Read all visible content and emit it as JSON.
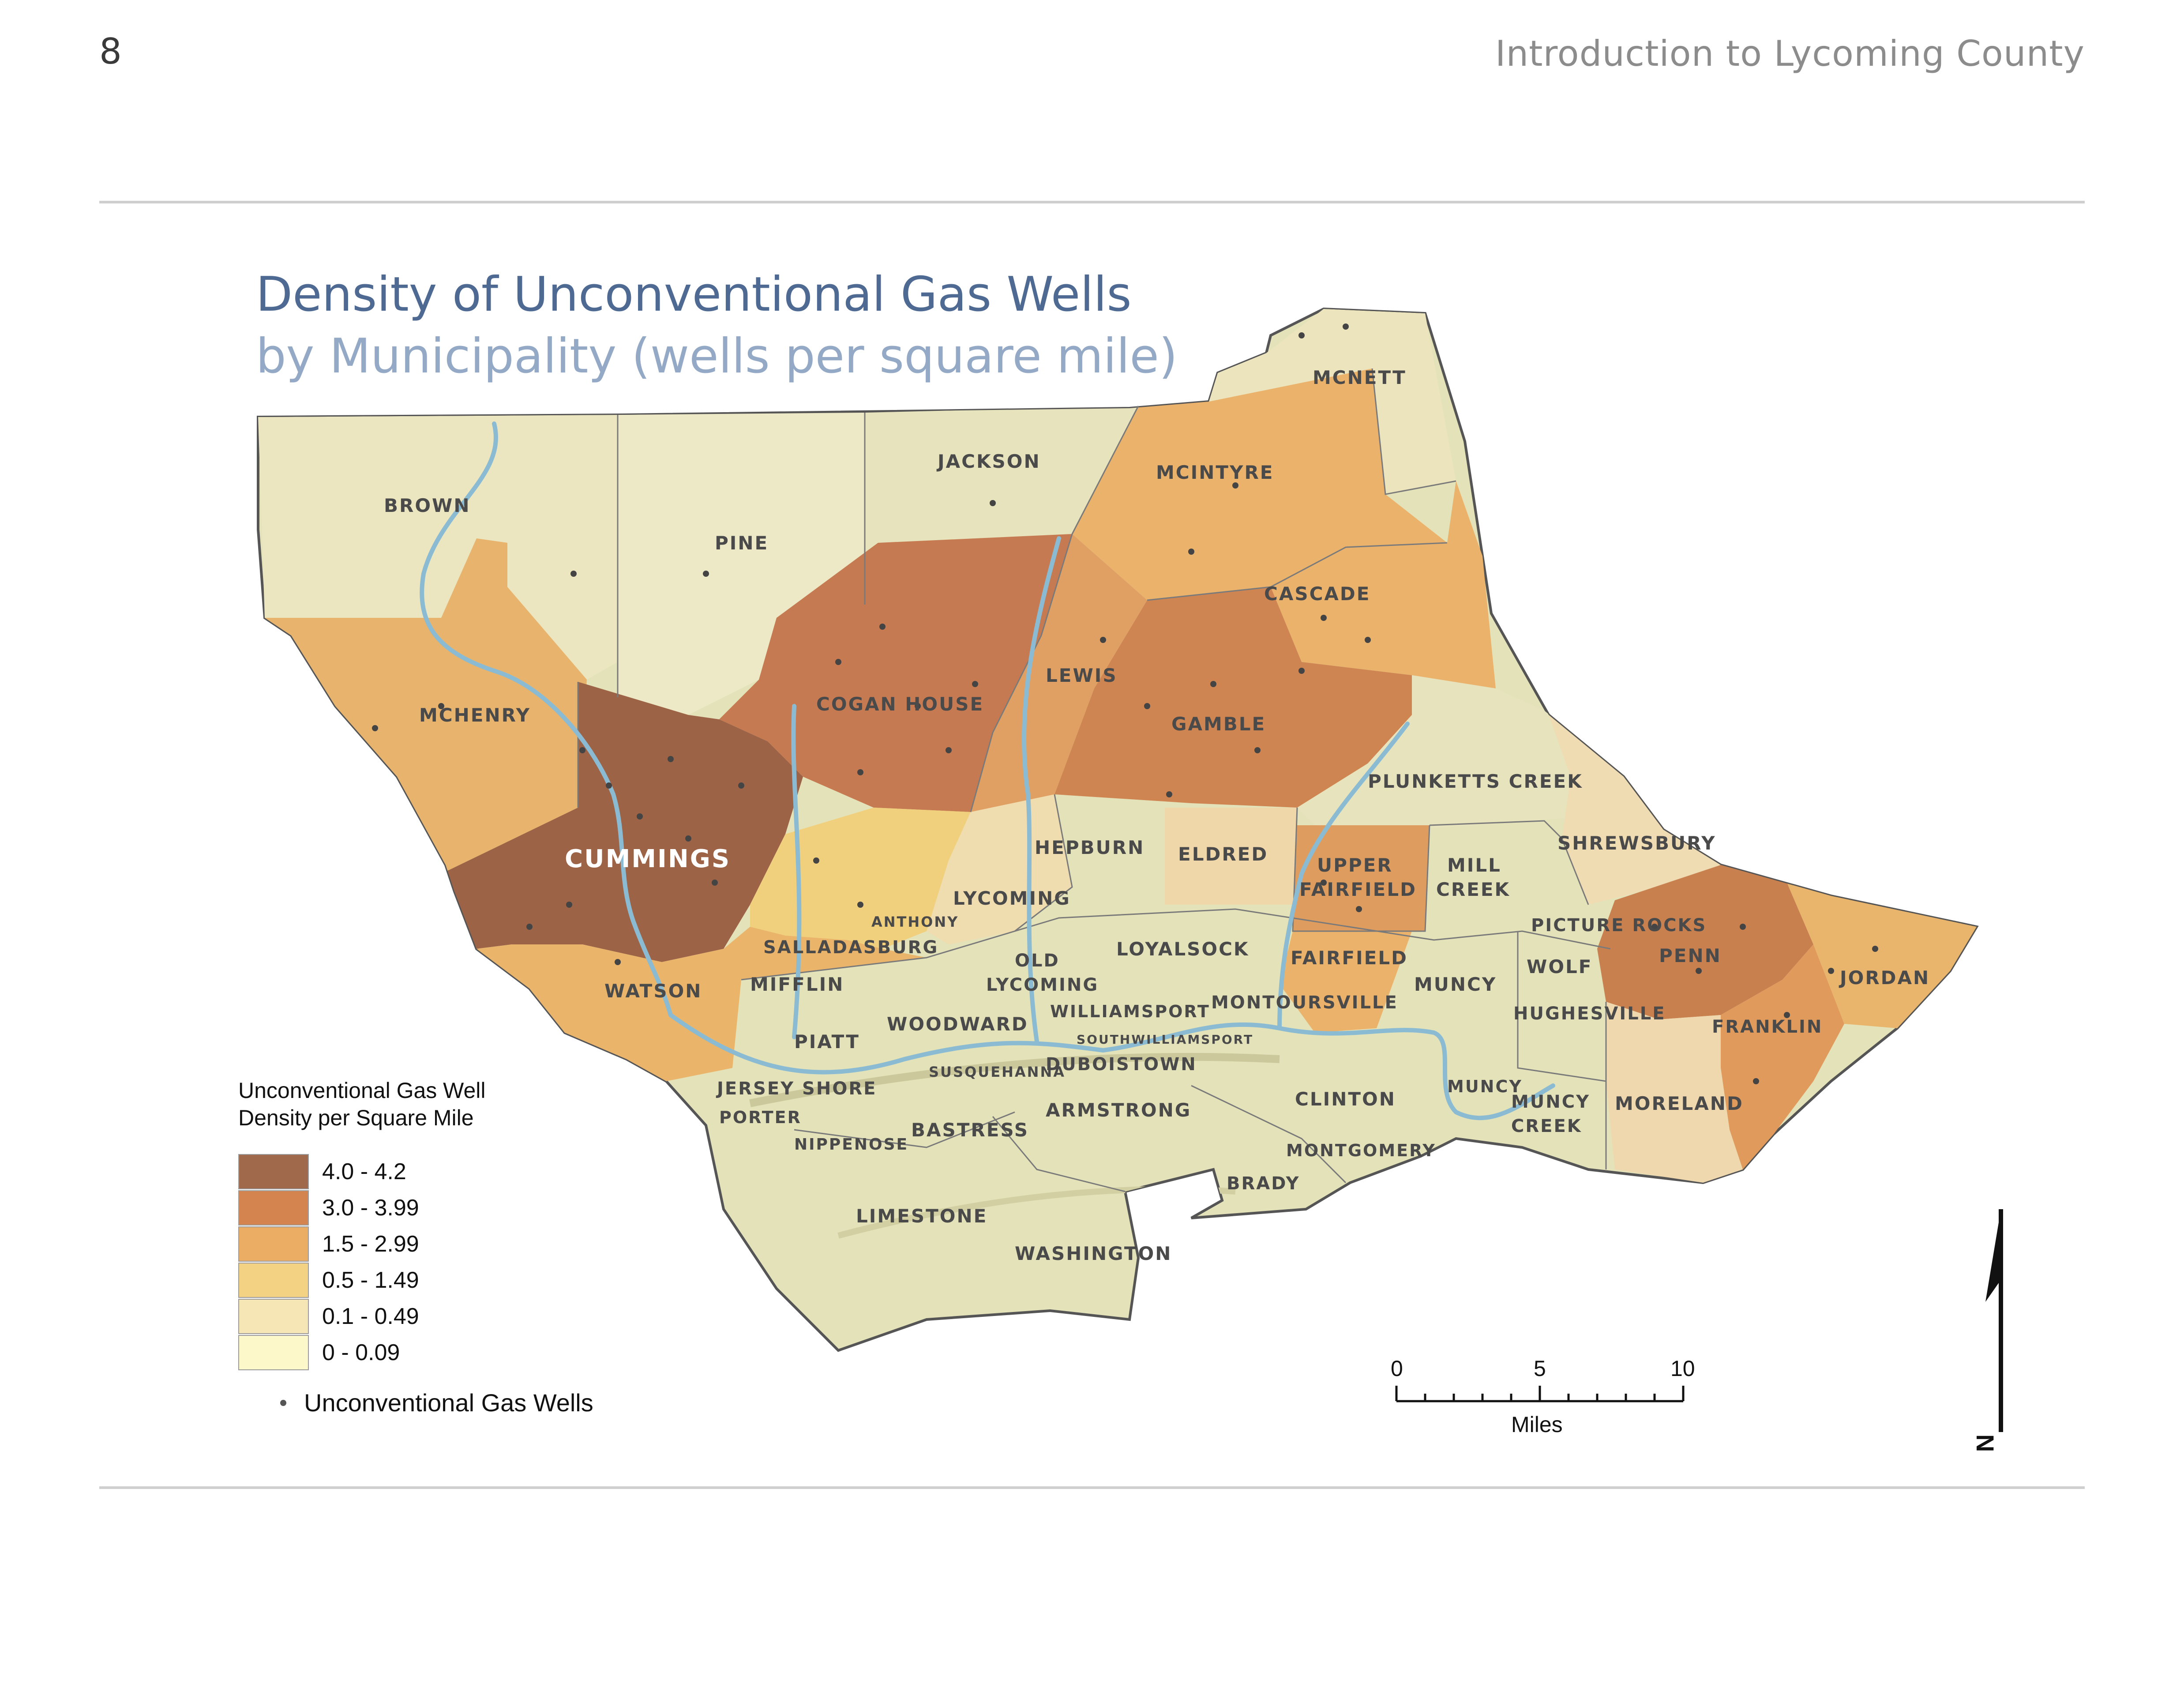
{
  "page": {
    "number": "8",
    "section_title": "Introduction to Lycoming County"
  },
  "map": {
    "title": "Density of Unconventional Gas Wells",
    "subtitle": "by Municipality (wells per square mile)",
    "base_color": "#e3e1b8",
    "river_color": "#8bbbd2",
    "well_dot_color": "#444444",
    "highlighted_label": "CUMMINGS",
    "municipalities": [
      {
        "name": "MCNETT",
        "density_class": "0.1 - 0.49"
      },
      {
        "name": "BROWN",
        "density_class": "0.1 - 0.49"
      },
      {
        "name": "JACKSON",
        "density_class": "0 - 0.09"
      },
      {
        "name": "MCINTYRE",
        "density_class": "1.5 - 2.99"
      },
      {
        "name": "PINE",
        "density_class": "0.1 - 0.49"
      },
      {
        "name": "CASCADE",
        "density_class": "1.5 - 2.99"
      },
      {
        "name": "LEWIS",
        "density_class": "1.5 - 2.99"
      },
      {
        "name": "MCHENRY",
        "density_class": "1.5 - 2.99"
      },
      {
        "name": "COGAN HOUSE",
        "density_class": "3.0 - 3.99"
      },
      {
        "name": "GAMBLE",
        "density_class": "3.0 - 3.99"
      },
      {
        "name": "PLUNKETTS CREEK",
        "density_class": "0 - 0.09"
      },
      {
        "name": "SHREWSBURY",
        "density_class": "0.1 - 0.49"
      },
      {
        "name": "CUMMINGS",
        "density_class": "4.0 - 4.2"
      },
      {
        "name": "HEPBURN",
        "density_class": "0 - 0.09"
      },
      {
        "name": "ELDRED",
        "density_class": "0.1 - 0.49"
      },
      {
        "name": "UPPER FAIRFIELD",
        "density_class": "3.0 - 3.99"
      },
      {
        "name": "MILL CREEK",
        "density_class": "0 - 0.09"
      },
      {
        "name": "LYCOMING",
        "density_class": "0.1 - 0.49"
      },
      {
        "name": "ANTHONY",
        "density_class": "1.5 - 2.99"
      },
      {
        "name": "PICTURE ROCKS",
        "density_class": "0 - 0.09"
      },
      {
        "name": "PENN",
        "density_class": "3.0 - 3.99"
      },
      {
        "name": "SALLADASBURG",
        "density_class": "1.5 - 2.99"
      },
      {
        "name": "OLD LYCOMING",
        "density_class": "0 - 0.09"
      },
      {
        "name": "LOYALSOCK",
        "density_class": "0 - 0.09"
      },
      {
        "name": "FAIRFIELD",
        "density_class": "1.5 - 2.99"
      },
      {
        "name": "WOLF",
        "density_class": "0 - 0.09"
      },
      {
        "name": "JORDAN",
        "density_class": "1.5 - 2.99"
      },
      {
        "name": "MIFFLIN",
        "density_class": "1.5 - 2.99"
      },
      {
        "name": "WATSON",
        "density_class": "1.5 - 2.99"
      },
      {
        "name": "MUNCY",
        "density_class": "0 - 0.09"
      },
      {
        "name": "WILLIAMSPORT",
        "density_class": "0 - 0.09"
      },
      {
        "name": "MONTOURSVILLE",
        "density_class": "0 - 0.09"
      },
      {
        "name": "HUGHESVILLE",
        "density_class": "0 - 0.09"
      },
      {
        "name": "FRANKLIN",
        "density_class": "1.5 - 2.99"
      },
      {
        "name": "WOODWARD",
        "density_class": "0 - 0.09"
      },
      {
        "name": "PIATT",
        "density_class": "0 - 0.09"
      },
      {
        "name": "SOUTH WILLIAMSPORT",
        "density_class": "0 - 0.09"
      },
      {
        "name": "SUSQUEHANNA",
        "density_class": "0 - 0.09"
      },
      {
        "name": "DUBOISTOWN",
        "density_class": "0 - 0.09"
      },
      {
        "name": "JERSEY SHORE",
        "density_class": "0 - 0.09"
      },
      {
        "name": "CLINTON",
        "density_class": "0 - 0.09"
      },
      {
        "name": "MUNCY CREEK",
        "density_class": "0 - 0.09"
      },
      {
        "name": "MORELAND",
        "density_class": "0.1 - 0.49"
      },
      {
        "name": "PORTER",
        "density_class": "0 - 0.09"
      },
      {
        "name": "ARMSTRONG",
        "density_class": "0 - 0.09"
      },
      {
        "name": "BASTRESS",
        "density_class": "0 - 0.09"
      },
      {
        "name": "NIPPENOSE",
        "density_class": "0 - 0.09"
      },
      {
        "name": "MONTGOMERY",
        "density_class": "0 - 0.09"
      },
      {
        "name": "BRADY",
        "density_class": "0 - 0.09"
      },
      {
        "name": "LIMESTONE",
        "density_class": "0 - 0.09"
      },
      {
        "name": "WASHINGTON",
        "density_class": "0 - 0.09"
      }
    ],
    "labels": {
      "mcnett": "MCNETT",
      "brown": "BROWN",
      "jackson": "JACKSON",
      "mcintyre": "MCINTYRE",
      "pine": "PINE",
      "cascade": "CASCADE",
      "lewis": "LEWIS",
      "mchenry": "MCHENRY",
      "cogan_house": "COGAN HOUSE",
      "gamble": "GAMBLE",
      "plunketts_creek": "PLUNKETTS CREEK",
      "shrewsbury": "SHREWSBURY",
      "cummings": "CUMMINGS",
      "hepburn": "HEPBURN",
      "eldred": "ELDRED",
      "upper_fairfield_1": "UPPER",
      "upper_fairfield_2": "FAIRFIELD",
      "mill_creek_1": "MILL",
      "mill_creek_2": "CREEK",
      "lycoming": "LYCOMING",
      "anthony": "ANTHONY",
      "picture_rocks": "PICTURE ROCKS",
      "penn": "PENN",
      "salladasburg": "SALLADASBURG",
      "old_lycoming_1": "OLD",
      "old_lycoming_2": "LYCOMING",
      "loyalsock": "LOYALSOCK",
      "fairfield": "FAIRFIELD",
      "wolf": "WOLF",
      "jordan": "JORDAN",
      "mifflin": "MIFFLIN",
      "watson": "WATSON",
      "muncy": "MUNCY",
      "williamsport": "WILLIAMSPORT",
      "montoursville": "MONTOURSVILLE",
      "hughesville": "HUGHESVILLE",
      "franklin": "FRANKLIN",
      "woodward": "WOODWARD",
      "piatt": "PIATT",
      "south_williamsport": "SOUTHWILLIAMSPORT",
      "susquehanna": "SUSQUEHANNA",
      "duboistown": "DUBOISTOWN",
      "jersey_shore": "JERSEY SHORE",
      "clinton": "CLINTON",
      "muncy_borough": "MUNCY",
      "muncy_creek_1": "MUNCY",
      "muncy_creek_2": "CREEK",
      "moreland": "MORELAND",
      "porter": "PORTER",
      "armstrong": "ARMSTRONG",
      "bastress": "BASTRESS",
      "nippenose": "NIPPENOSE",
      "montgomery": "MONTGOMERY",
      "brady": "BRADY",
      "limestone": "LIMESTONE",
      "washington": "WASHINGTON"
    }
  },
  "legend": {
    "title_line1": "Unconventional Gas Well",
    "title_line2": "Density per Square Mile",
    "classes": [
      {
        "label": "4.0 - 4.2",
        "color": "#a0694c"
      },
      {
        "label": "3.0 - 3.99",
        "color": "#d3844f"
      },
      {
        "label": "1.5 - 2.99",
        "color": "#eaad63"
      },
      {
        "label": "0.5 - 1.49",
        "color": "#f3d383"
      },
      {
        "label": "0.1 - 0.49",
        "color": "#f6e6b5"
      },
      {
        "label": "0 - 0.09",
        "color": "#fdf8c9"
      }
    ],
    "wells_label": "Unconventional Gas Wells"
  },
  "scale_bar": {
    "tick_0": "0",
    "tick_5": "5",
    "tick_10": "10",
    "unit": "Miles"
  },
  "north_arrow": {
    "letter": "N"
  }
}
